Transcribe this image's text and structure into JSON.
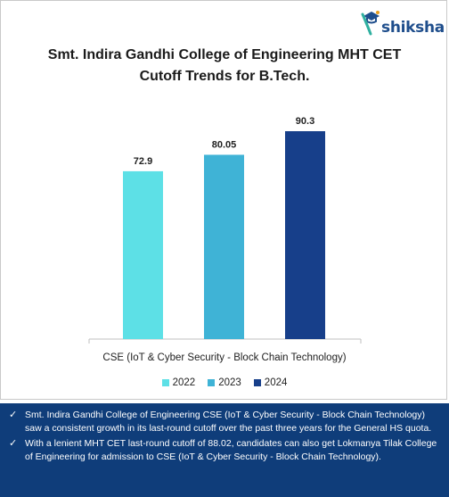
{
  "brand": {
    "name": "shiksha",
    "accent": "#1f4e8c",
    "icon": "graduate-cap-icon"
  },
  "title_lines": [
    "Smt. Indira Gandhi College of Engineering MHT CET",
    "Cutoff Trends for B.Tech."
  ],
  "chart_data": {
    "type": "bar",
    "title": "Smt. Indira Gandhi College of Engineering MHT CET Cutoff Trends for B.Tech.",
    "categories": [
      "CSE (IoT & Cyber Security - Block Chain Technology)"
    ],
    "series": [
      {
        "name": "2022",
        "values": [
          72.9
        ],
        "color": "#5de0e6",
        "label": "72.9"
      },
      {
        "name": "2023",
        "values": [
          80.05
        ],
        "color": "#3fb3d6",
        "label": "80.05"
      },
      {
        "name": "2024",
        "values": [
          90.3
        ],
        "color": "#173f8a",
        "label": "90.3"
      }
    ],
    "ylim": [
      0,
      100
    ],
    "grid": false,
    "legend": "bottom"
  },
  "notes": [
    "Smt. Indira Gandhi College of Engineering CSE (IoT & Cyber Security - Block Chain Technology) saw a consistent growth in its last-round cutoff over the past three years for the General HS quota.",
    "With a lenient MHT CET last-round cutoff of 88.02, candidates can also get Lokmanya Tilak College of Engineering for admission to CSE (IoT & Cyber Security - Block Chain Technology)."
  ],
  "notes_background": "#0f3d7a"
}
